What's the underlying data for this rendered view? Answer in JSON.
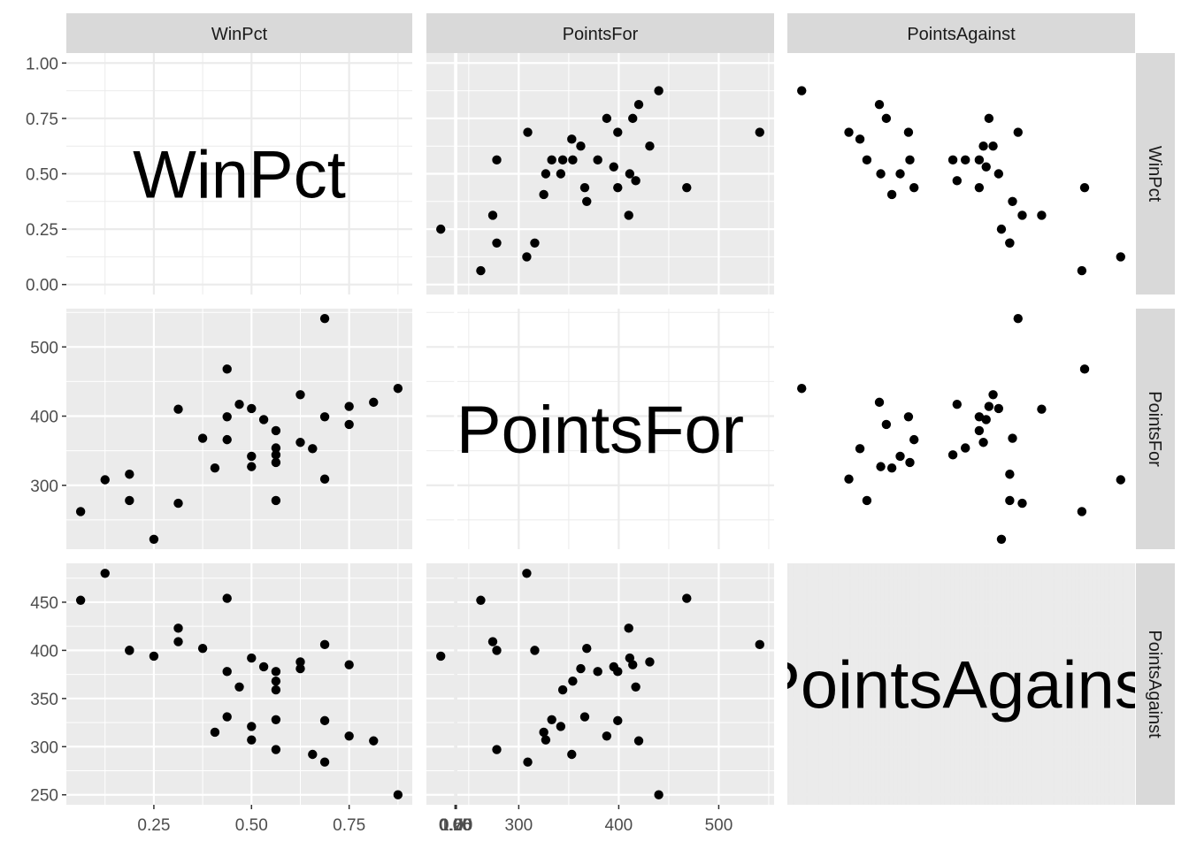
{
  "chart_data": {
    "type": "scatter-matrix",
    "title": "",
    "variables": [
      "WinPct",
      "PointsFor",
      "PointsAgainst"
    ],
    "axes": {
      "WinPct": {
        "xlim": [
          0.0625,
          0.875
        ],
        "ylim": [
          0.0,
          1.0
        ],
        "x_ticks": [
          "0.25",
          "0.50",
          "0.75"
        ],
        "y_ticks": [
          "0.00",
          "0.25",
          "0.50",
          "0.75",
          "1.00"
        ]
      },
      "PointsFor": {
        "xlim": [
          222,
          541
        ],
        "ylim": [
          222,
          541
        ],
        "x_ticks": [
          "300",
          "400",
          "500"
        ],
        "y_ticks": [
          "300",
          "400",
          "500"
        ]
      },
      "PointsAgainst": {
        "xlim": [
          250,
          480
        ],
        "ylim": [
          250,
          480
        ],
        "x_ticks": [
          "0.00",
          "0.25",
          "0.50",
          "0.75",
          "1.00"
        ],
        "y_ticks": [
          "250",
          "300",
          "350",
          "400",
          "450"
        ]
      }
    },
    "panel_background": "#ebebeb",
    "diagonal_background": "#ffffff",
    "strip_background": "#d9d9d9",
    "grid": true,
    "point_color": "#000000",
    "observations": [
      {
        "WinPct": 0.0625,
        "PointsFor": 262,
        "PointsAgainst": 452
      },
      {
        "WinPct": 0.125,
        "PointsFor": 308,
        "PointsAgainst": 480
      },
      {
        "WinPct": 0.1875,
        "PointsFor": 278,
        "PointsAgainst": 400
      },
      {
        "WinPct": 0.1875,
        "PointsFor": 316,
        "PointsAgainst": 400
      },
      {
        "WinPct": 0.25,
        "PointsFor": 222,
        "PointsAgainst": 394
      },
      {
        "WinPct": 0.3125,
        "PointsFor": 274,
        "PointsAgainst": 409
      },
      {
        "WinPct": 0.3125,
        "PointsFor": 410,
        "PointsAgainst": 423
      },
      {
        "WinPct": 0.375,
        "PointsFor": 368,
        "PointsAgainst": 402
      },
      {
        "WinPct": 0.4063,
        "PointsFor": 325,
        "PointsAgainst": 315
      },
      {
        "WinPct": 0.4375,
        "PointsFor": 468,
        "PointsAgainst": 454
      },
      {
        "WinPct": 0.4375,
        "PointsFor": 399,
        "PointsAgainst": 378
      },
      {
        "WinPct": 0.4375,
        "PointsFor": 366,
        "PointsAgainst": 331
      },
      {
        "WinPct": 0.4688,
        "PointsFor": 417,
        "PointsAgainst": 362
      },
      {
        "WinPct": 0.5,
        "PointsFor": 411,
        "PointsAgainst": 392
      },
      {
        "WinPct": 0.5,
        "PointsFor": 342,
        "PointsAgainst": 321
      },
      {
        "WinPct": 0.5,
        "PointsFor": 327,
        "PointsAgainst": 307
      },
      {
        "WinPct": 0.5313,
        "PointsFor": 395,
        "PointsAgainst": 383
      },
      {
        "WinPct": 0.5625,
        "PointsFor": 379,
        "PointsAgainst": 378
      },
      {
        "WinPct": 0.5625,
        "PointsFor": 354,
        "PointsAgainst": 368
      },
      {
        "WinPct": 0.5625,
        "PointsFor": 344,
        "PointsAgainst": 359
      },
      {
        "WinPct": 0.5625,
        "PointsFor": 333,
        "PointsAgainst": 328
      },
      {
        "WinPct": 0.5625,
        "PointsFor": 278,
        "PointsAgainst": 297
      },
      {
        "WinPct": 0.625,
        "PointsFor": 431,
        "PointsAgainst": 388
      },
      {
        "WinPct": 0.625,
        "PointsFor": 362,
        "PointsAgainst": 381
      },
      {
        "WinPct": 0.6563,
        "PointsFor": 353,
        "PointsAgainst": 292
      },
      {
        "WinPct": 0.6875,
        "PointsFor": 541,
        "PointsAgainst": 406
      },
      {
        "WinPct": 0.6875,
        "PointsFor": 399,
        "PointsAgainst": 327
      },
      {
        "WinPct": 0.6875,
        "PointsFor": 309,
        "PointsAgainst": 284
      },
      {
        "WinPct": 0.75,
        "PointsFor": 414,
        "PointsAgainst": 385
      },
      {
        "WinPct": 0.75,
        "PointsFor": 388,
        "PointsAgainst": 311
      },
      {
        "WinPct": 0.8125,
        "PointsFor": 420,
        "PointsAgainst": 306
      },
      {
        "WinPct": 0.875,
        "PointsFor": 440,
        "PointsAgainst": 250
      }
    ]
  }
}
